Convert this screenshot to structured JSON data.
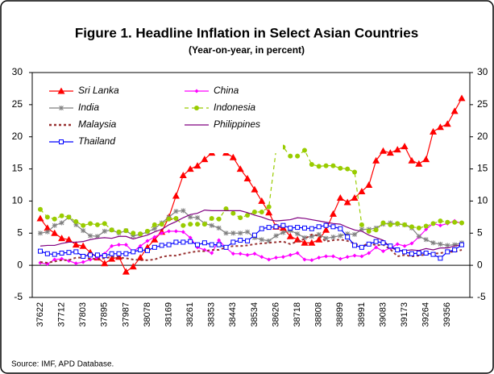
{
  "chart_data": {
    "type": "line",
    "title": "Figure 1. Headline Inflation in Select Asian Countries",
    "subtitle": "(Year-on-year, in percent)",
    "source": "Source: IMF, APD Database.",
    "categories": [
      "37622",
      null,
      null,
      "37712",
      null,
      null,
      "37803",
      null,
      null,
      "37895",
      null,
      null,
      "37987",
      null,
      null,
      "38078",
      null,
      null,
      "38169",
      null,
      null,
      "38261",
      null,
      null,
      "38353",
      null,
      null,
      "38443",
      null,
      null,
      "38534",
      null,
      null,
      "38626",
      null,
      null,
      "38718",
      null,
      null,
      "38808",
      null,
      null,
      "38899",
      null,
      null,
      "38991",
      null,
      null,
      "39083",
      null,
      null,
      "39173",
      null,
      null,
      "39264",
      null,
      null,
      "39356",
      null,
      null
    ],
    "ylim": [
      -5,
      30
    ],
    "yticks": [
      -5,
      0,
      5,
      10,
      15,
      20,
      25,
      30
    ],
    "y2lim": [
      -5,
      30
    ],
    "y2ticks": [
      -5,
      0,
      5,
      10,
      15,
      20,
      25,
      30
    ],
    "grid": false,
    "legend": "upper left",
    "series": [
      {
        "name": "Sri Lanka",
        "color": "#ff0000",
        "marker": "triangle",
        "dash": "solid",
        "values": [
          7.3,
          5.8,
          5,
          4.2,
          4,
          3.2,
          3,
          2,
          1.2,
          0.3,
          1,
          1.3,
          -1,
          -0.2,
          1.2,
          2.8,
          4,
          5.2,
          7.5,
          10.8,
          14,
          15,
          15.5,
          16.5,
          17.5,
          18,
          17.5,
          16.8,
          15,
          13.5,
          11.8,
          10,
          8.2,
          6,
          5.8,
          4.5,
          4,
          3.5,
          3.5,
          4,
          5.5,
          8,
          10.5,
          9.8,
          10.5,
          11.5,
          12.5,
          16.3,
          17.8,
          17.5,
          18,
          18.5,
          16.3,
          15.8,
          16.5,
          20.8,
          21.5,
          22,
          24,
          26
        ]
      },
      {
        "name": "China",
        "color": "#ff00ff",
        "marker": "diamond",
        "dash": "solid",
        "values": [
          0.4,
          0.2,
          0.9,
          1,
          0.7,
          0.3,
          0.5,
          0.9,
          1.1,
          1.8,
          3,
          3.2,
          3.2,
          2.1,
          3,
          3.8,
          4.4,
          5,
          5.3,
          5.3,
          5.2,
          4.3,
          2.8,
          2.4,
          1.9,
          3.9,
          2.7,
          1.8,
          1.8,
          1.6,
          1.8,
          1.3,
          0.9,
          1.2,
          1.3,
          1.6,
          1.9,
          0.9,
          0.8,
          1.2,
          1.4,
          1.4,
          1,
          1.3,
          1.5,
          1.4,
          1.9,
          2.8,
          2.2,
          2.7,
          3.3,
          3,
          3.4,
          4.4,
          5.6,
          6.5,
          6.2,
          6.5,
          6.9,
          6.5
        ]
      },
      {
        "name": "India",
        "color": "#808080",
        "marker": "asterisk",
        "dash": "solid",
        "values": [
          5,
          5.2,
          6.2,
          6.6,
          7.5,
          6.3,
          5.4,
          4.6,
          4.5,
          5.3,
          5.5,
          5,
          5.4,
          4.6,
          4.8,
          5.2,
          5.7,
          6.6,
          7.5,
          8.4,
          8.5,
          7.5,
          7.4,
          6.5,
          6.2,
          5.8,
          5,
          5,
          5,
          5.2,
          4.3,
          4,
          3.8,
          4.6,
          5.1,
          5.4,
          4.9,
          4.3,
          4.5,
          4.8,
          4.2,
          4.4,
          4.6,
          4.9,
          4.8,
          5.6,
          5.6,
          5.8,
          6.4,
          6.6,
          6.4,
          6.3,
          5.8,
          4.5,
          4,
          3.5,
          3.3,
          3.1,
          3.2,
          3.5
        ]
      },
      {
        "name": "Indonesia",
        "color": "#99cc00",
        "marker": "circle",
        "dash": "dashed",
        "values": [
          8.7,
          7.5,
          7.2,
          7.7,
          7.5,
          6.8,
          6.2,
          6.5,
          6.3,
          6.5,
          5.5,
          5.2,
          5.4,
          5,
          4.9,
          5.3,
          6.3,
          6.4,
          7.2,
          7.3,
          6.2,
          6.4,
          6.4,
          6.4,
          7.3,
          7.2,
          8.8,
          8.1,
          7.4,
          7.8,
          8.3,
          8.3,
          9.1,
          17.9,
          18.4,
          17,
          17,
          17.9,
          15.7,
          15.4,
          15.5,
          15.5,
          15.1,
          15,
          14.5,
          6.3,
          5.3,
          5.5,
          6.6,
          6.3,
          6.5,
          6.3,
          6,
          5.8,
          6.1,
          6.5,
          6.9,
          6.7,
          6.7,
          6.6
        ]
      },
      {
        "name": "Malaysia",
        "color": "#993333",
        "marker": "none",
        "dash": "dashed",
        "values": [
          0.5,
          0.4,
          0.6,
          0.8,
          0.8,
          1.2,
          1.2,
          1,
          1,
          1.1,
          1.3,
          1.2,
          1.1,
          0.9,
          0.8,
          0.8,
          0.9,
          1.3,
          1.5,
          1.5,
          1.8,
          2,
          2.2,
          2.2,
          2.4,
          2.4,
          2.8,
          3,
          3,
          3.1,
          3.3,
          3.4,
          3.5,
          3.6,
          3.7,
          3.3,
          3.7,
          4.1,
          4.8,
          4.6,
          3.7,
          3.9,
          4,
          3.8,
          3.4,
          2.9,
          3.5,
          3.1,
          3.2,
          2.5,
          1.4,
          1.6,
          1.4,
          1.5,
          1.7,
          1.8,
          1.9,
          2.1,
          2.1,
          2.4
        ]
      },
      {
        "name": "Philippines",
        "color": "#800080",
        "marker": "none",
        "dash": "solid",
        "values": [
          3,
          3.1,
          3.1,
          3.4,
          3.6,
          3.6,
          3.7,
          4,
          4.2,
          4.3,
          4.2,
          4.5,
          4.5,
          4.1,
          4.4,
          4.7,
          5.2,
          5.6,
          6.3,
          6.8,
          7.4,
          7.9,
          8.1,
          8.6,
          8.5,
          8.5,
          8.5,
          8.5,
          8.5,
          8.2,
          7.8,
          7.5,
          7.1,
          6.9,
          7,
          7.1,
          7.4,
          7.3,
          7.1,
          6.9,
          6.7,
          6.5,
          6.4,
          5.9,
          5.5,
          5.3,
          4.7,
          4.3,
          3.9,
          2.8,
          2.3,
          2.3,
          2.4,
          2.3,
          2.6,
          2.4,
          2.7,
          2.7,
          3,
          3.2
        ]
      },
      {
        "name": "Thailand",
        "color": "#0000ff",
        "marker": "square",
        "dash": "solid",
        "values": [
          2.2,
          1.8,
          1.7,
          1.9,
          2,
          2.1,
          1.4,
          1.6,
          1.6,
          1.5,
          1.8,
          1.8,
          1.8,
          2.1,
          2.4,
          2.3,
          2.8,
          3.1,
          3.2,
          3.6,
          3.6,
          3.7,
          3.2,
          3.5,
          3.2,
          3.2,
          2.8,
          3.6,
          3.9,
          3.8,
          4.7,
          5.7,
          5.9,
          6,
          6.2,
          5.8,
          5.9,
          5.8,
          5.7,
          6,
          6.2,
          6,
          5.7,
          4.4,
          3.1,
          2.8,
          3.3,
          3.7,
          3.5,
          3,
          2.4,
          2.1,
          1.8,
          1.9,
          1.9,
          1.7,
          1.1,
          2.1,
          2.4,
          3.2
        ]
      }
    ]
  }
}
